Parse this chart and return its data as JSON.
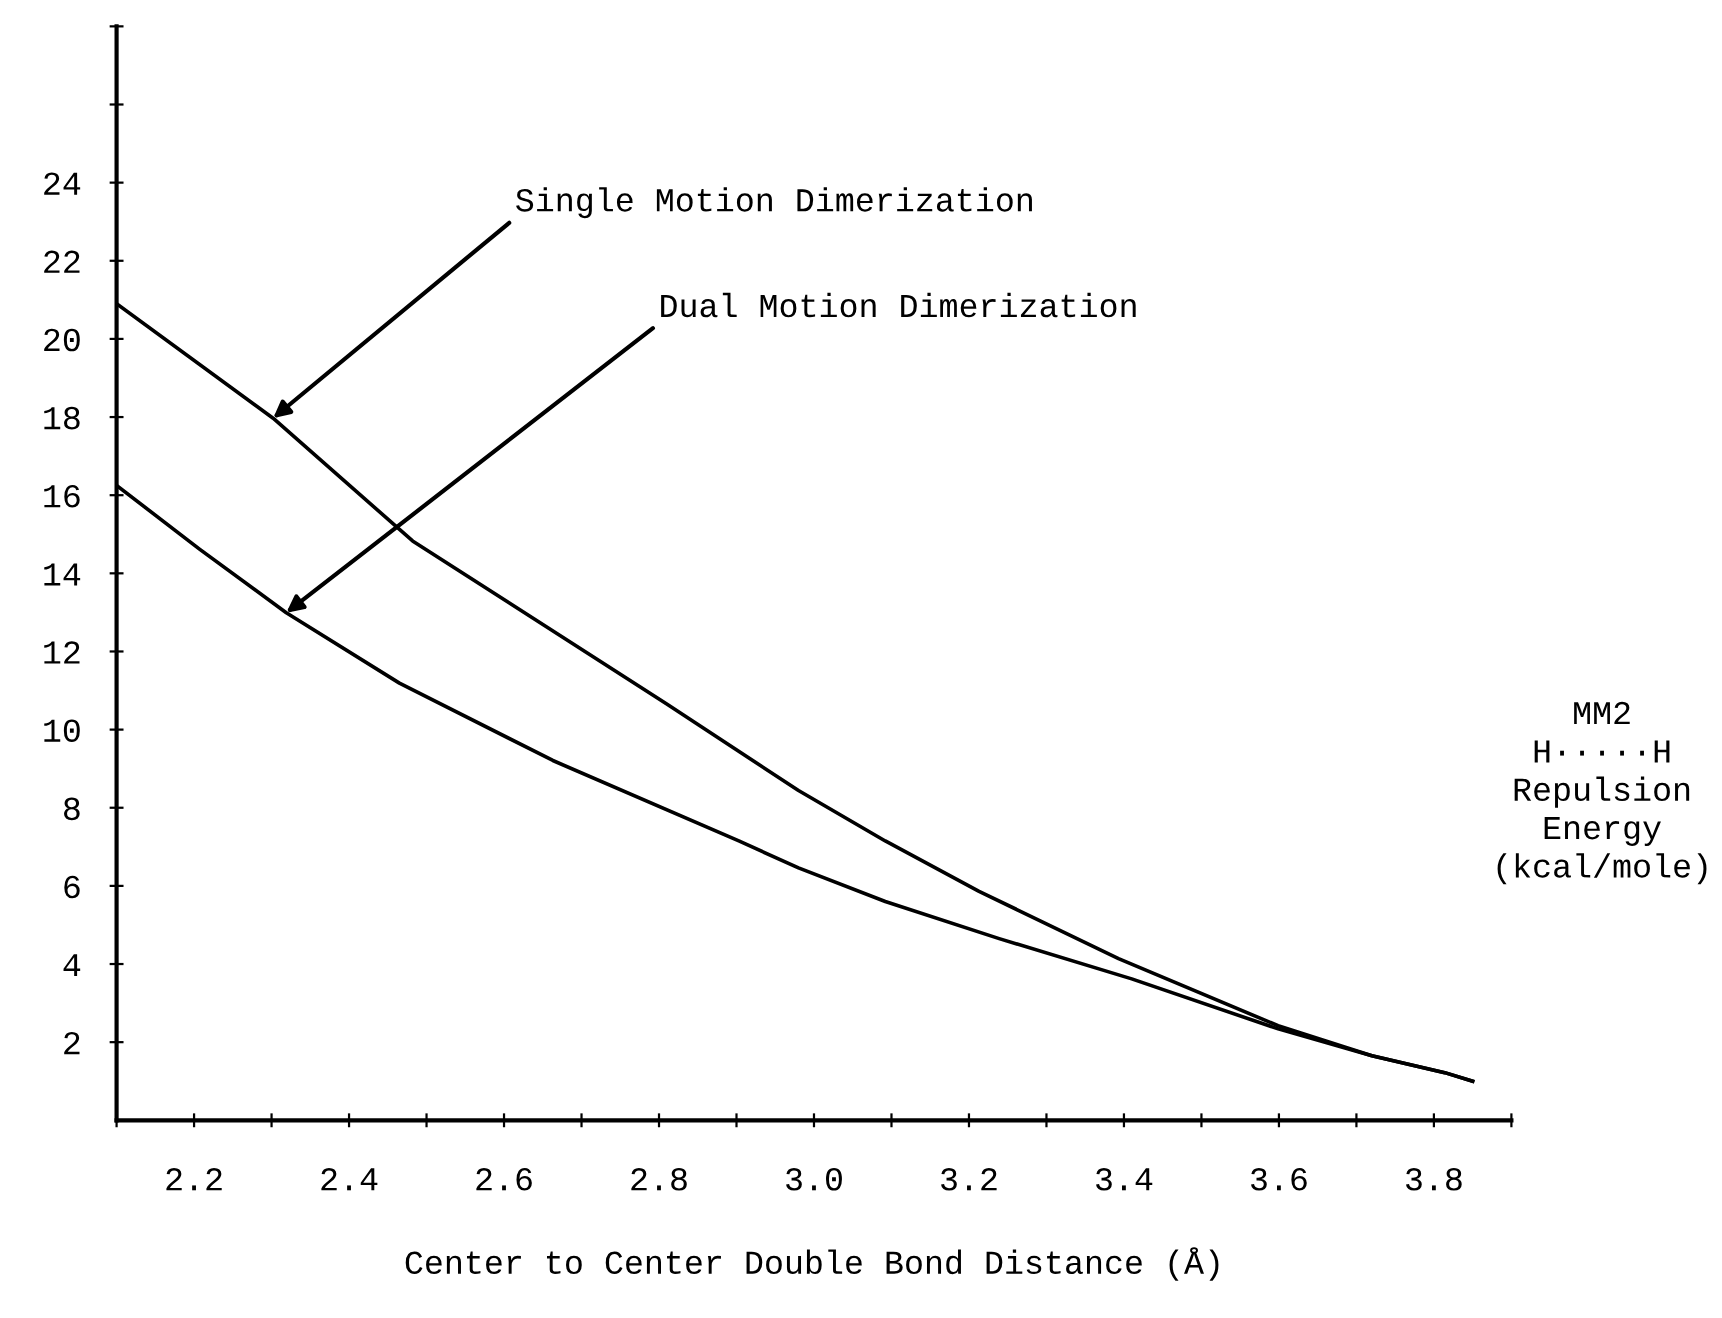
{
  "chart_data": {
    "type": "line",
    "xlabel": "Center to Center Double Bond Distance (Å)",
    "ylabel": "MM2\nH·····H\nRepulsion\nEnergy\n(kcal/mole)",
    "xlim": [
      2.1,
      3.9
    ],
    "ylim": [
      0,
      28
    ],
    "xticks": [
      {
        "value": 2.1,
        "label": null
      },
      2.2,
      {
        "value": 2.3,
        "label": null
      },
      2.4,
      {
        "value": 2.5,
        "label": null
      },
      2.6,
      {
        "value": 2.7,
        "label": null
      },
      2.8,
      {
        "value": 2.9,
        "label": null
      },
      {
        "value": 3.0,
        "label": "3.0"
      },
      {
        "value": 3.1,
        "label": null
      },
      3.2,
      {
        "value": 3.3,
        "label": null
      },
      3.4,
      {
        "value": 3.5,
        "label": null
      },
      3.6,
      {
        "value": 3.7,
        "label": null
      },
      3.8,
      {
        "value": 3.9,
        "label": null
      }
    ],
    "yticks": [
      2,
      4,
      6,
      8,
      10,
      12,
      14,
      16,
      18,
      20,
      22,
      24,
      {
        "value": 26,
        "label": null
      },
      {
        "value": 28,
        "label": null
      }
    ],
    "grid": false,
    "marker": "none",
    "line_style": "solid",
    "series": [
      {
        "color": "#000000",
        "x": [
          2.1,
          2.302,
          2.482,
          2.809,
          2.98,
          3.092,
          3.213,
          3.393,
          3.599,
          3.72,
          3.814,
          3.85
        ],
        "values": [
          20.9,
          17.97,
          14.83,
          10.67,
          8.44,
          7.15,
          5.86,
          4.14,
          2.42,
          1.65,
          1.22,
          1.0
        ]
      },
      {
        "color": "#000000",
        "x": [
          2.1,
          2.207,
          2.319,
          2.465,
          2.663,
          2.903,
          2.98,
          3.092,
          3.239,
          3.41,
          3.599,
          3.72,
          3.814,
          3.85
        ],
        "values": [
          16.25,
          14.62,
          12.99,
          11.19,
          9.21,
          7.15,
          6.46,
          5.6,
          4.65,
          3.62,
          2.34,
          1.65,
          1.22,
          1.0
        ]
      }
    ],
    "annotations": [
      {
        "text": "Single Motion Dimerization",
        "x": 2.302,
        "y": 17.97
      },
      {
        "text": "Dual Motion Dimerization",
        "x": 2.319,
        "y": 12.99
      }
    ]
  }
}
